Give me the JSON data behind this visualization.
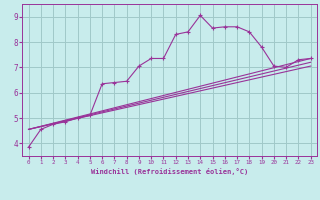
{
  "bg_color": "#c8ecec",
  "grid_color": "#a0c8c8",
  "line_color": "#993399",
  "xlabel": "Windchill (Refroidissement éolien,°C)",
  "xlim": [
    -0.5,
    23.5
  ],
  "ylim": [
    3.5,
    9.5
  ],
  "xticks": [
    0,
    1,
    2,
    3,
    4,
    5,
    6,
    7,
    8,
    9,
    10,
    11,
    12,
    13,
    14,
    15,
    16,
    17,
    18,
    19,
    20,
    21,
    22,
    23
  ],
  "yticks": [
    4,
    5,
    6,
    7,
    8,
    9
  ],
  "curve1_x": [
    0,
    1,
    2,
    3,
    4,
    5,
    6,
    7,
    8,
    9,
    10,
    11,
    12,
    13,
    14,
    15,
    16,
    17,
    18,
    19,
    20,
    21,
    22,
    23
  ],
  "curve1_y": [
    3.85,
    4.55,
    4.75,
    4.85,
    5.0,
    5.1,
    6.35,
    6.4,
    6.45,
    7.05,
    7.35,
    7.35,
    8.3,
    8.4,
    9.05,
    8.55,
    8.6,
    8.6,
    8.4,
    7.8,
    7.05,
    7.0,
    7.3,
    7.35
  ],
  "line1_x": [
    0,
    23
  ],
  "line1_y": [
    4.55,
    7.35
  ],
  "line2_x": [
    0,
    23
  ],
  "line2_y": [
    4.55,
    7.2
  ],
  "line3_x": [
    0,
    23
  ],
  "line3_y": [
    4.55,
    7.05
  ]
}
